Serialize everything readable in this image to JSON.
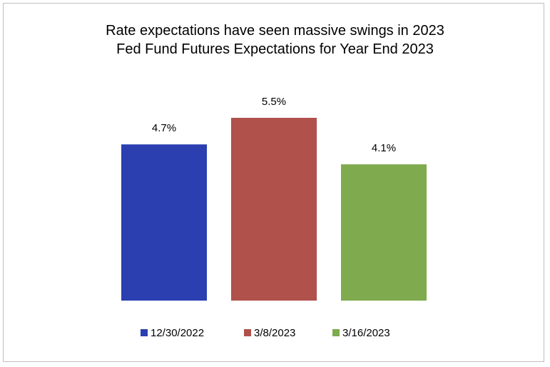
{
  "chart_data": {
    "type": "bar",
    "title": "Rate expectations have seen massive swings in 2023",
    "subtitle": "Fed Fund Futures Expectations for Year End 2023",
    "categories": [
      "12/30/2022",
      "3/8/2023",
      "3/16/2023"
    ],
    "values": [
      4.7,
      5.5,
      4.1
    ],
    "data_labels": [
      "4.7%",
      "5.5%",
      "4.1%"
    ],
    "colors": [
      "#2b3fb0",
      "#b0514c",
      "#7faa4e"
    ],
    "ylim": [
      0,
      6.5
    ],
    "grid": false,
    "legend_position": "bottom"
  }
}
